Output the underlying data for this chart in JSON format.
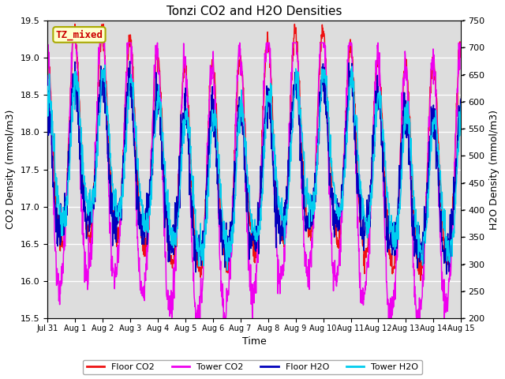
{
  "title": "Tonzi CO2 and H2O Densities",
  "xlabel": "Time",
  "ylabel_left": "CO2 Density (mmol/m3)",
  "ylabel_right": "H2O Density (mmol/m3)",
  "ylim_left": [
    15.5,
    19.5
  ],
  "ylim_right": [
    200,
    750
  ],
  "annotation_text": "TZ_mixed",
  "annotation_bg": "#ffffcc",
  "annotation_edge": "#aaaa00",
  "annotation_text_color": "#cc0000",
  "plot_bg_color": "#dddddd",
  "fig_bg_color": "#ffffff",
  "line_colors": {
    "floor_co2": "#ee1111",
    "tower_co2": "#ee00ee",
    "floor_h2o": "#0000bb",
    "tower_h2o": "#00ccee"
  },
  "legend_labels": [
    "Floor CO2",
    "Tower CO2",
    "Floor H2O",
    "Tower H2O"
  ],
  "x_tick_labels": [
    "Jul 31",
    "Aug 1",
    "Aug 2",
    "Aug 3",
    "Aug 4",
    "Aug 5",
    "Aug 6",
    "Aug 7",
    "Aug 8",
    "Aug 9",
    "Aug 10",
    "Aug 11",
    "Aug 12",
    "Aug 13",
    "Aug 14",
    "Aug 15"
  ],
  "yticks_left": [
    15.5,
    16.0,
    16.5,
    17.0,
    17.5,
    18.0,
    18.5,
    19.0,
    19.5
  ],
  "yticks_right": [
    200,
    250,
    300,
    350,
    400,
    450,
    500,
    550,
    600,
    650,
    700,
    750
  ],
  "n_days": 15,
  "pts_per_day": 96,
  "seed": 7
}
